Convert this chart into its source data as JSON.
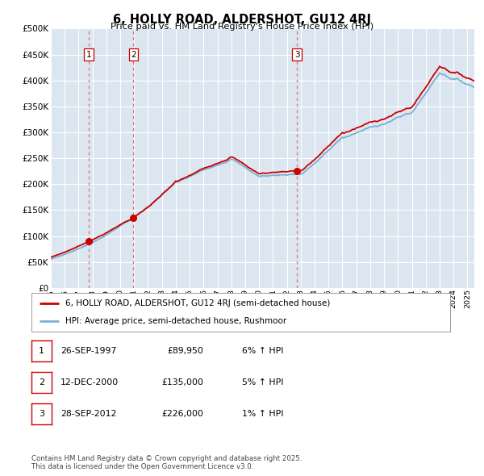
{
  "title": "6, HOLLY ROAD, ALDERSHOT, GU12 4RJ",
  "subtitle": "Price paid vs. HM Land Registry's House Price Index (HPI)",
  "ylim": [
    0,
    500000
  ],
  "yticks": [
    0,
    50000,
    100000,
    150000,
    200000,
    250000,
    300000,
    350000,
    400000,
    450000,
    500000
  ],
  "plot_bg_color": "#dce6f1",
  "grid_color": "#ffffff",
  "sale_points": [
    {
      "date": 1997.74,
      "price": 89950,
      "label": "1"
    },
    {
      "date": 2000.95,
      "price": 135000,
      "label": "2"
    },
    {
      "date": 2012.74,
      "price": 226000,
      "label": "3"
    }
  ],
  "sale_vline_color": "#e07070",
  "sale_dot_color": "#cc0000",
  "hpi_line_color": "#7ab0d4",
  "price_line_color": "#cc0000",
  "legend_entries": [
    "6, HOLLY ROAD, ALDERSHOT, GU12 4RJ (semi-detached house)",
    "HPI: Average price, semi-detached house, Rushmoor"
  ],
  "table_rows": [
    {
      "num": "1",
      "date": "26-SEP-1997",
      "price": "£89,950",
      "hpi": "6% ↑ HPI"
    },
    {
      "num": "2",
      "date": "12-DEC-2000",
      "price": "£135,000",
      "hpi": "5% ↑ HPI"
    },
    {
      "num": "3",
      "date": "28-SEP-2012",
      "price": "£226,000",
      "hpi": "1% ↑ HPI"
    }
  ],
  "footnote": "Contains HM Land Registry data © Crown copyright and database right 2025.\nThis data is licensed under the Open Government Licence v3.0.",
  "xmin": 1995.0,
  "xmax": 2025.5
}
